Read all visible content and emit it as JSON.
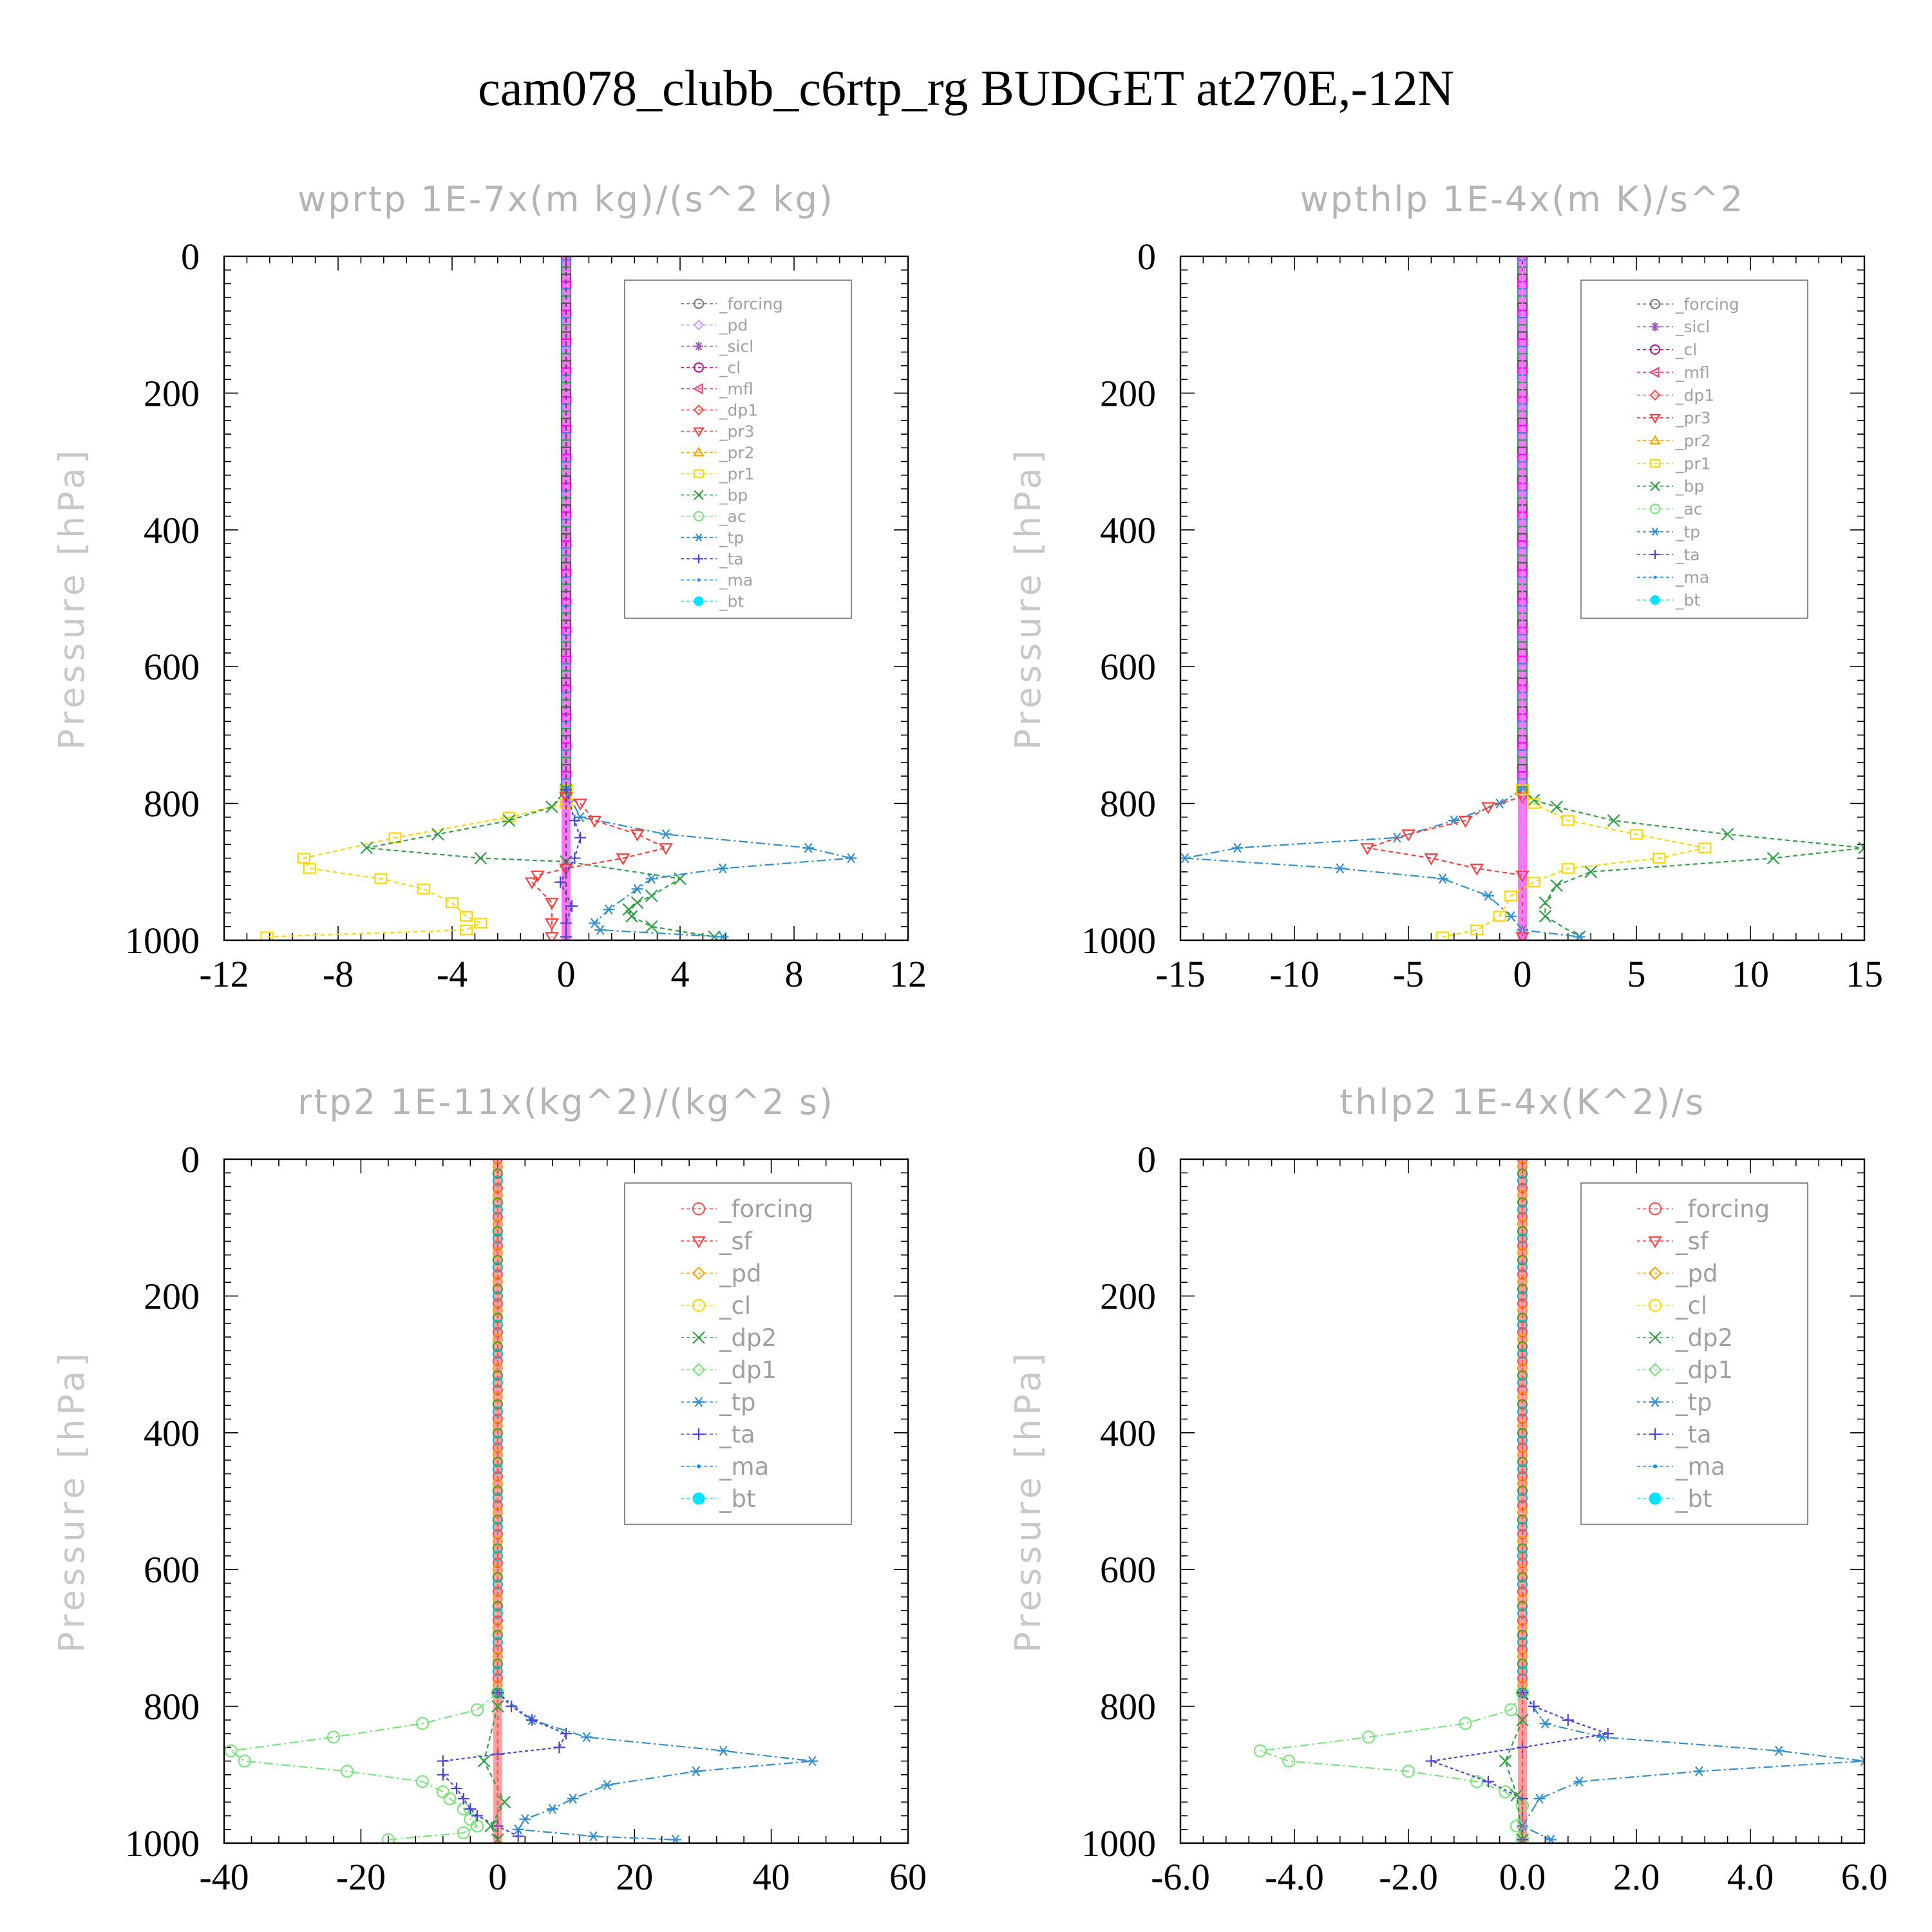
{
  "figure": {
    "title": "cam078_clubb_c6rtp_rg  BUDGET at270E,-12N"
  },
  "chart_data": [
    {
      "type": "line",
      "title": "wprtp   1E-7x(m kg)/(s^2 kg)",
      "ylabel": "Pressure [hPa]",
      "xlim": [
        -12,
        12
      ],
      "ylim": [
        0,
        1000
      ],
      "y_inverted": true,
      "xticks": [
        "-12",
        "-8",
        "-4",
        "0",
        "4",
        "8",
        "12"
      ],
      "yticks": [
        "0",
        "200",
        "400",
        "600",
        "800",
        "1000"
      ],
      "legend": [
        "_forcing",
        "_pd",
        "_sicl",
        "_cl",
        "_mfl",
        "_dp1",
        "_pr3",
        "_pr2",
        "_pr1",
        "_bp",
        "_ac",
        "_tp",
        "_ta",
        "_ma",
        "_bt"
      ],
      "legend_location": "upper-right",
      "series": [
        {
          "name": "_pr1",
          "color": "#ffd700",
          "marker": "square",
          "dash": "7,5",
          "x": [
            0,
            0,
            -2,
            -6,
            -9.2,
            -9,
            -6.5,
            -5,
            -4,
            -3.5,
            -3,
            -3.5,
            -10.5
          ],
          "y": [
            780,
            800,
            820,
            850,
            880,
            895,
            910,
            925,
            945,
            965,
            975,
            985,
            995
          ]
        },
        {
          "name": "_bp",
          "color": "#2ea043",
          "marker": "x",
          "dash": "7,5",
          "x": [
            0,
            -0.5,
            -2,
            -4.5,
            -7,
            -3,
            0,
            4,
            3,
            2.5,
            2.2,
            2.3,
            3,
            5.2
          ],
          "y": [
            780,
            805,
            825,
            845,
            865,
            880,
            885,
            910,
            935,
            945,
            955,
            965,
            980,
            995
          ]
        },
        {
          "name": "_tp",
          "color": "#2f8fcf",
          "marker": "asterisk",
          "dash": "14,5,3,5",
          "x": [
            0,
            0.5,
            3.5,
            8.5,
            10,
            5.5,
            3,
            2.5,
            1.5,
            1,
            1.2,
            5.5
          ],
          "y": [
            780,
            820,
            845,
            865,
            880,
            895,
            910,
            925,
            955,
            975,
            985,
            995
          ]
        },
        {
          "name": "_pr3",
          "color": "#ff3c3c",
          "marker": "tri-down",
          "dash": "7,5",
          "x": [
            0,
            0.5,
            1,
            2.5,
            3.5,
            2,
            0,
            -1,
            -1.2,
            -0.5,
            -0.5,
            -0.5
          ],
          "y": [
            790,
            800,
            825,
            845,
            865,
            880,
            895,
            905,
            915,
            945,
            975,
            995
          ]
        },
        {
          "name": "_ta",
          "color": "#4646dc",
          "marker": "plus",
          "dash": "5,4",
          "x": [
            0,
            0.3,
            0.5,
            0.3,
            -0.2,
            0.2,
            0,
            0
          ],
          "y": [
            780,
            825,
            850,
            880,
            915,
            950,
            975,
            995
          ]
        },
        {
          "name": "_cl",
          "color": "#ff00ff",
          "marker": "circle",
          "dash": "7,5",
          "x": [
            0,
            0,
            0
          ],
          "y": [
            0,
            500,
            1000
          ]
        },
        {
          "name": "_forcing",
          "color": "#555555",
          "marker": "circle",
          "dash": "7,5",
          "x": [
            0,
            0,
            0
          ],
          "y": [
            0,
            500,
            1000
          ]
        }
      ]
    },
    {
      "type": "line",
      "title": "wpthlp   1E-4x(m K)/s^2",
      "ylabel": "Pressure [hPa]",
      "xlim": [
        -15,
        15
      ],
      "ylim": [
        0,
        1000
      ],
      "y_inverted": true,
      "xticks": [
        "-15",
        "-10",
        "-5",
        "0",
        "5",
        "10",
        "15"
      ],
      "yticks": [
        "0",
        "200",
        "400",
        "600",
        "800",
        "1000"
      ],
      "legend": [
        "_forcing",
        "_sicl",
        "_cl",
        "_mfl",
        "_dp1",
        "_pr3",
        "_pr2",
        "_pr1",
        "_bp",
        "_ac",
        "_tp",
        "_ta",
        "_ma",
        "_bt"
      ],
      "legend_location": "upper-right",
      "series": [
        {
          "name": "_bp",
          "color": "#2ea043",
          "marker": "x",
          "dash": "7,5",
          "x": [
            0,
            0.5,
            1.5,
            4,
            9,
            15,
            11,
            3,
            1.5,
            1,
            1,
            2.5
          ],
          "y": [
            780,
            795,
            805,
            825,
            845,
            865,
            880,
            900,
            920,
            945,
            965,
            995
          ]
        },
        {
          "name": "_tp",
          "color": "#2f8fcf",
          "marker": "asterisk",
          "dash": "14,5,3,5",
          "x": [
            0,
            -1,
            -3,
            -5.5,
            -12.5,
            -14.8,
            -8,
            -3.5,
            -1.5,
            -0.5,
            0,
            2.5
          ],
          "y": [
            780,
            800,
            825,
            850,
            865,
            880,
            895,
            910,
            935,
            965,
            985,
            995
          ]
        },
        {
          "name": "_pr3",
          "color": "#ff3c3c",
          "marker": "tri-down",
          "dash": "7,5",
          "x": [
            0,
            -1.5,
            -2.5,
            -5,
            -6.8,
            -4,
            -2,
            0,
            0
          ],
          "y": [
            790,
            805,
            825,
            845,
            865,
            880,
            895,
            905,
            995
          ]
        },
        {
          "name": "_pr1",
          "color": "#ffd700",
          "marker": "square",
          "dash": "7,5",
          "x": [
            0,
            0.5,
            2,
            5,
            8,
            6,
            2,
            0.5,
            -0.5,
            -1,
            -2,
            -3.5
          ],
          "y": [
            780,
            800,
            825,
            845,
            865,
            880,
            895,
            915,
            935,
            965,
            985,
            995
          ]
        },
        {
          "name": "_mfl",
          "color": "#ff3c78",
          "marker": "tri-left",
          "dash": "7,5",
          "x": [
            0,
            0,
            0
          ],
          "y": [
            0,
            500,
            1000
          ]
        },
        {
          "name": "_forcing",
          "color": "#c8a0ff",
          "marker": "circle",
          "dash": "7,5",
          "x": [
            0,
            0,
            0
          ],
          "y": [
            0,
            500,
            1000
          ]
        }
      ]
    },
    {
      "type": "line",
      "title": "rtp2   1E-11x(kg^2)/(kg^2 s)",
      "ylabel": "Pressure [hPa]",
      "xlim": [
        -40,
        60
      ],
      "ylim": [
        0,
        1000
      ],
      "y_inverted": true,
      "xticks": [
        "-40",
        "-20",
        "0",
        "20",
        "40",
        "60"
      ],
      "yticks": [
        "0",
        "200",
        "400",
        "600",
        "800",
        "1000"
      ],
      "legend": [
        "_forcing",
        "_sf",
        "_pd",
        "_cl",
        "_dp2",
        "_dp1",
        "_tp",
        "_ta",
        "_ma",
        "_bt"
      ],
      "legend_location": "upper-right",
      "series": [
        {
          "name": "_dp1",
          "color": "#78e678",
          "marker": "circle",
          "dash": "14,5,3,5",
          "x": [
            0,
            -3,
            -11,
            -24,
            -39,
            -37,
            -22,
            -11,
            -8,
            -7,
            -5,
            -4,
            -3,
            -5,
            -16
          ],
          "y": [
            780,
            805,
            825,
            845,
            865,
            880,
            895,
            910,
            925,
            935,
            950,
            965,
            975,
            985,
            995
          ]
        },
        {
          "name": "_tp",
          "color": "#2f8fcf",
          "marker": "asterisk",
          "dash": "14,5,3,5",
          "x": [
            0,
            5,
            13,
            33,
            46,
            29,
            16,
            11,
            8,
            4,
            3,
            14,
            26
          ],
          "y": [
            780,
            820,
            845,
            865,
            880,
            895,
            915,
            935,
            950,
            965,
            980,
            990,
            995
          ]
        },
        {
          "name": "_ta",
          "color": "#4646dc",
          "marker": "plus",
          "dash": "5,4",
          "x": [
            0,
            2,
            5,
            10,
            9,
            0,
            -8,
            -8,
            -6,
            -5,
            -4,
            -3,
            0,
            3
          ],
          "y": [
            780,
            800,
            820,
            840,
            860,
            870,
            880,
            900,
            920,
            935,
            950,
            960,
            975,
            990
          ]
        },
        {
          "name": "_dp2",
          "color": "#2ea043",
          "marker": "x",
          "dash": "7,5",
          "x": [
            0,
            -2,
            1,
            -1,
            0
          ],
          "y": [
            800,
            880,
            940,
            975,
            995
          ]
        },
        {
          "name": "_forcing",
          "color": "#ff5050",
          "marker": "diamond",
          "dash": "7,5",
          "x": [
            0,
            0,
            0
          ],
          "y": [
            0,
            500,
            1000
          ]
        }
      ]
    },
    {
      "type": "line",
      "title": "thlp2   1E-4x(K^2)/s",
      "ylabel": "Pressure [hPa]",
      "xlim": [
        -6.0,
        6.0
      ],
      "ylim": [
        0,
        1000
      ],
      "y_inverted": true,
      "xticks": [
        "-6.0",
        "-4.0",
        "-2.0",
        "0.0",
        "2.0",
        "4.0",
        "6.0"
      ],
      "yticks": [
        "0",
        "200",
        "400",
        "600",
        "800",
        "1000"
      ],
      "legend": [
        "_forcing",
        "_sf",
        "_pd",
        "_cl",
        "_dp2",
        "_dp1",
        "_tp",
        "_ta",
        "_ma",
        "_bt"
      ],
      "legend_location": "upper-right",
      "series": [
        {
          "name": "_dp1",
          "color": "#78e678",
          "marker": "circle",
          "dash": "14,5,3,5",
          "x": [
            0,
            -0.2,
            -1,
            -2.7,
            -4.6,
            -4.1,
            -2,
            -0.8,
            -0.3,
            0,
            -0.1,
            0
          ],
          "y": [
            780,
            805,
            825,
            845,
            865,
            880,
            895,
            910,
            925,
            945,
            975,
            995
          ]
        },
        {
          "name": "_tp",
          "color": "#2f8fcf",
          "marker": "asterisk",
          "dash": "14,5,3,5",
          "x": [
            0,
            0.4,
            1.4,
            4.5,
            6,
            3.1,
            1,
            0.3,
            0,
            0.5
          ],
          "y": [
            780,
            825,
            845,
            865,
            880,
            895,
            910,
            935,
            975,
            995
          ]
        },
        {
          "name": "_ta",
          "color": "#4646dc",
          "marker": "plus",
          "dash": "5,4",
          "x": [
            0,
            0.2,
            0.8,
            1.5,
            0,
            -1.6,
            -0.6,
            0,
            0
          ],
          "y": [
            780,
            800,
            820,
            840,
            860,
            880,
            910,
            935,
            995
          ]
        },
        {
          "name": "_dp2",
          "color": "#2ea043",
          "marker": "x",
          "dash": "7,5",
          "x": [
            0,
            -0.3,
            -0.1,
            0
          ],
          "y": [
            820,
            880,
            930,
            995
          ]
        },
        {
          "name": "_forcing",
          "color": "#ff5050",
          "marker": "diamond",
          "dash": "7,5",
          "x": [
            0,
            0,
            0
          ],
          "y": [
            0,
            500,
            1000
          ]
        }
      ]
    }
  ]
}
